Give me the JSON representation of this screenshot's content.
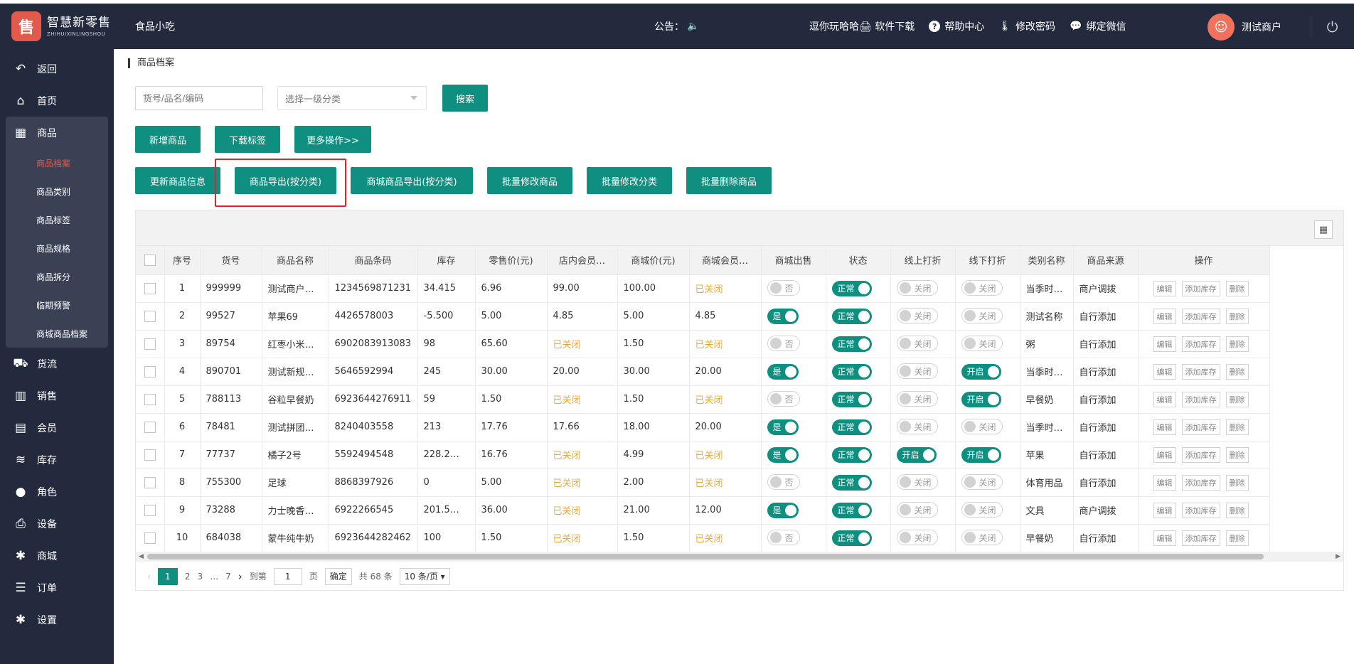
{
  "header": {
    "logo_glyph": "售",
    "brand_cn": "智慧新零售",
    "brand_en": "ZHIHUIXINLINGSHOU",
    "shop_name": "食品小吃",
    "notice_label": "公告：",
    "links": [
      {
        "icon": "download-icon",
        "label": "逗你玩哈哈🖨 软件下载"
      },
      {
        "icon": "help-icon",
        "label": "帮助中心"
      },
      {
        "icon": "thermometer-icon",
        "label": "修改密码"
      },
      {
        "icon": "wechat-icon",
        "label": "绑定微信"
      }
    ],
    "user_name": "测试商户"
  },
  "sidebar": {
    "items": [
      {
        "icon": "↶",
        "label": "返回"
      },
      {
        "icon": "⌂",
        "label": "首页"
      },
      {
        "icon": "▦",
        "label": "商品"
      },
      {
        "icon": "⛟",
        "label": "货流"
      },
      {
        "icon": "▥",
        "label": "销售"
      },
      {
        "icon": "▤",
        "label": "会员"
      },
      {
        "icon": "≋",
        "label": "库存"
      },
      {
        "icon": "●",
        "label": "角色"
      },
      {
        "icon": "⎙",
        "label": "设备"
      },
      {
        "icon": "✱",
        "label": "商城"
      },
      {
        "icon": "☰",
        "label": "订单"
      },
      {
        "icon": "✱",
        "label": "设置"
      }
    ],
    "sub_items": [
      "商品档案",
      "商品类别",
      "商品标签",
      "商品规格",
      "商品拆分",
      "临期预警",
      "商城商品档案"
    ]
  },
  "breadcrumb": "商品档案",
  "search": {
    "placeholder": "货号/品名/编码",
    "category_placeholder": "选择一级分类",
    "search_label": "搜索"
  },
  "actions_row1": [
    "新增商品",
    "下载标签",
    "更多操作>>"
  ],
  "actions_row2": [
    "更新商品信息",
    "商品导出(按分类)",
    "商城商品导出(按分类)",
    "批量修改商品",
    "批量修改分类",
    "批量删除商品"
  ],
  "table": {
    "columns": [
      "序号",
      "货号",
      "商品名称",
      "商品条码",
      "库存",
      "零售价(元)",
      "店内会员…",
      "商城价(元)",
      "商城会员…",
      "商城出售",
      "状态",
      "线上打折",
      "线下打折",
      "类别名称",
      "商品来源",
      "操作"
    ],
    "switch_labels": {
      "yes": "是",
      "no": "否",
      "normal": "正常",
      "on": "开启",
      "off": "关闭"
    },
    "op_labels": [
      "编辑",
      "添加库存",
      "删除"
    ],
    "rows": [
      {
        "no": "1",
        "sku": "999999",
        "name": "测试商户…",
        "barcode": "1234569871231",
        "stock": "34.415",
        "retail": "6.96",
        "member": "99.00",
        "mall": "100.00",
        "mall_member": "已关闭",
        "mall_sell": false,
        "online": false,
        "offline": false,
        "category": "当季时…",
        "source": "商户调拨"
      },
      {
        "no": "2",
        "sku": "99527",
        "name": "苹果69",
        "barcode": "4426578003",
        "stock": "-5.500",
        "retail": "5.00",
        "member": "4.85",
        "mall": "5.00",
        "mall_member": "4.85",
        "mall_sell": true,
        "online": false,
        "offline": false,
        "category": "测试名称",
        "source": "自行添加"
      },
      {
        "no": "3",
        "sku": "89754",
        "name": "红枣小米…",
        "barcode": "6902083913083",
        "stock": "98",
        "retail": "65.60",
        "member": "已关闭",
        "mall": "1.50",
        "mall_member": "已关闭",
        "mall_sell": false,
        "online": false,
        "offline": false,
        "category": "粥",
        "source": "自行添加"
      },
      {
        "no": "4",
        "sku": "890701",
        "name": "测试新规…",
        "barcode": "5646592994",
        "stock": "245",
        "retail": "30.00",
        "member": "20.00",
        "mall": "30.00",
        "mall_member": "20.00",
        "mall_sell": true,
        "online": false,
        "offline": true,
        "category": "当季时…",
        "source": "自行添加"
      },
      {
        "no": "5",
        "sku": "788113",
        "name": "谷粒早餐奶",
        "barcode": "6923644276911",
        "stock": "59",
        "retail": "1.50",
        "member": "已关闭",
        "mall": "1.50",
        "mall_member": "已关闭",
        "mall_sell": false,
        "online": false,
        "offline": true,
        "category": "早餐奶",
        "source": "自行添加"
      },
      {
        "no": "6",
        "sku": "78481",
        "name": "测试拼团…",
        "barcode": "8240403558",
        "stock": "213",
        "retail": "17.76",
        "member": "17.66",
        "mall": "18.00",
        "mall_member": "20.00",
        "mall_sell": true,
        "online": false,
        "offline": false,
        "category": "当季时…",
        "source": "自行添加"
      },
      {
        "no": "7",
        "sku": "77737",
        "name": "橘子2号",
        "barcode": "5592494548",
        "stock": "228.2…",
        "retail": "16.76",
        "member": "已关闭",
        "mall": "4.99",
        "mall_member": "已关闭",
        "mall_sell": true,
        "online": true,
        "offline": true,
        "category": "苹果",
        "source": "自行添加"
      },
      {
        "no": "8",
        "sku": "755300",
        "name": "足球",
        "barcode": "8868397926",
        "stock": "0",
        "retail": "5.00",
        "member": "已关闭",
        "mall": "2.00",
        "mall_member": "已关闭",
        "mall_sell": false,
        "online": false,
        "offline": false,
        "category": "体育用品",
        "source": "自行添加"
      },
      {
        "no": "9",
        "sku": "73288",
        "name": "力士晚香…",
        "barcode": "6922266545",
        "stock": "201.5…",
        "retail": "36.00",
        "member": "已关闭",
        "mall": "21.00",
        "mall_member": "12.00",
        "mall_sell": true,
        "online": false,
        "offline": false,
        "category": "文具",
        "source": "商户调拨"
      },
      {
        "no": "10",
        "sku": "684038",
        "name": "蒙牛纯牛奶",
        "barcode": "6923644282462",
        "stock": "100",
        "retail": "1.50",
        "member": "已关闭",
        "mall": "1.50",
        "mall_member": "已关闭",
        "mall_sell": false,
        "online": false,
        "offline": false,
        "category": "早餐奶",
        "source": "自行添加"
      }
    ]
  },
  "pagination": {
    "pages": [
      "1",
      "2",
      "3",
      "…",
      "7"
    ],
    "goto_label": "到第",
    "goto_value": "1",
    "page_unit": "页",
    "confirm_label": "确定",
    "total_label": "共 68 条",
    "page_size": "10 条/页"
  },
  "colors": {
    "sidebar_bg": "#232a3d",
    "accent": "#0f8f7f",
    "closed_text": "#f0a732",
    "active_sub": "#e8554e",
    "highlight": "#e82027"
  }
}
